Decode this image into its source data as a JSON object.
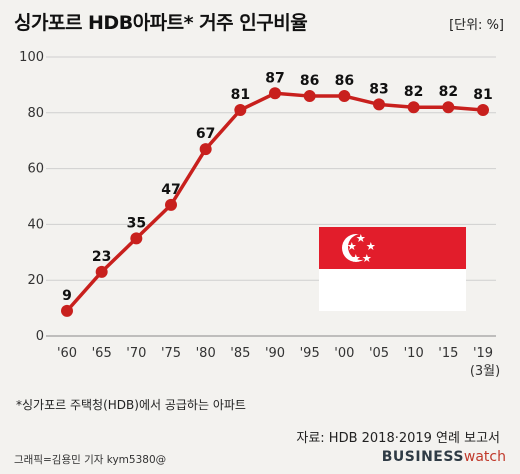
{
  "title": "싱가포르 HDB아파트* 거주 인구비율",
  "unit_label": "[단위: %]",
  "footnote": "*싱가포르 주택청(HDB)에서 공급하는 아파트",
  "source": "자료: HDB 2018·2019 연례 보고서",
  "credit": "그래픽=김용민 기자 kym5380@",
  "brand": {
    "main": "BUSINESS",
    "accent": "watch"
  },
  "flag_icon": "singapore-flag-icon",
  "colors": {
    "line": "#c8201d",
    "grid": "#cfcfcf",
    "background": "#f3f2ef",
    "flag_red": "#e21d2b"
  },
  "chart_data": {
    "type": "line",
    "categories": [
      "'60",
      "'65",
      "'70",
      "'75",
      "'80",
      "'85",
      "'90",
      "'95",
      "'00",
      "'05",
      "'10",
      "'15",
      "'19"
    ],
    "values": [
      9,
      23,
      35,
      47,
      67,
      81,
      87,
      86,
      86,
      83,
      82,
      82,
      81
    ],
    "x_note": "(3월)",
    "ylim": [
      0,
      100
    ],
    "yticks": [
      0,
      20,
      40,
      60,
      80,
      100
    ],
    "grid": true,
    "legend": "none"
  }
}
